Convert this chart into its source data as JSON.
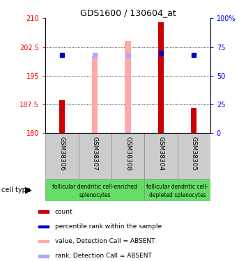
{
  "title": "GDS1600 / 130604_at",
  "samples": [
    "GSM38306",
    "GSM38307",
    "GSM38308",
    "GSM38304",
    "GSM38305"
  ],
  "ylim_left": [
    180,
    210
  ],
  "ylim_right": [
    0,
    100
  ],
  "yticks_left": [
    180,
    187.5,
    195,
    202.5,
    210
  ],
  "yticks_right": [
    0,
    25,
    50,
    75,
    100
  ],
  "ytick_labels_left": [
    "180",
    "187.5",
    "195",
    "202.5",
    "210"
  ],
  "ytick_labels_right": [
    "0",
    "25",
    "50",
    "75",
    "100%"
  ],
  "red_bar_values": [
    188.5,
    180.0,
    180.0,
    209.0,
    186.5
  ],
  "pink_bar_values": [
    180.0,
    200.0,
    204.0,
    180.0,
    180.0
  ],
  "blue_square_values": [
    200.5,
    180.0,
    180.0,
    201.0,
    200.5
  ],
  "lavender_square_values": [
    180.0,
    200.5,
    200.5,
    180.0,
    180.0
  ],
  "red_bar_color": "#cc0000",
  "pink_bar_color": "#ffaaaa",
  "blue_sq_color": "#0000cc",
  "lavender_sq_color": "#aaaaff",
  "group1_label_line1": "follicular dendritic cell-enriched",
  "group1_label_line2": "splenocytes",
  "group2_label_line1": "follicular dendritic cell-",
  "group2_label_line2": "depleted splenocytes",
  "group_color": "#66dd66",
  "sample_bg_color": "#cccccc",
  "legend_items": [
    {
      "label": "count",
      "color": "#cc0000"
    },
    {
      "label": "percentile rank within the sample",
      "color": "#0000cc"
    },
    {
      "label": "value, Detection Call = ABSENT",
      "color": "#ffaaaa"
    },
    {
      "label": "rank, Detection Call = ABSENT",
      "color": "#aaaaff"
    }
  ],
  "bar_width": 0.18,
  "pink_bar_width": 0.18,
  "dotted_yticks": [
    187.5,
    195,
    202.5
  ]
}
